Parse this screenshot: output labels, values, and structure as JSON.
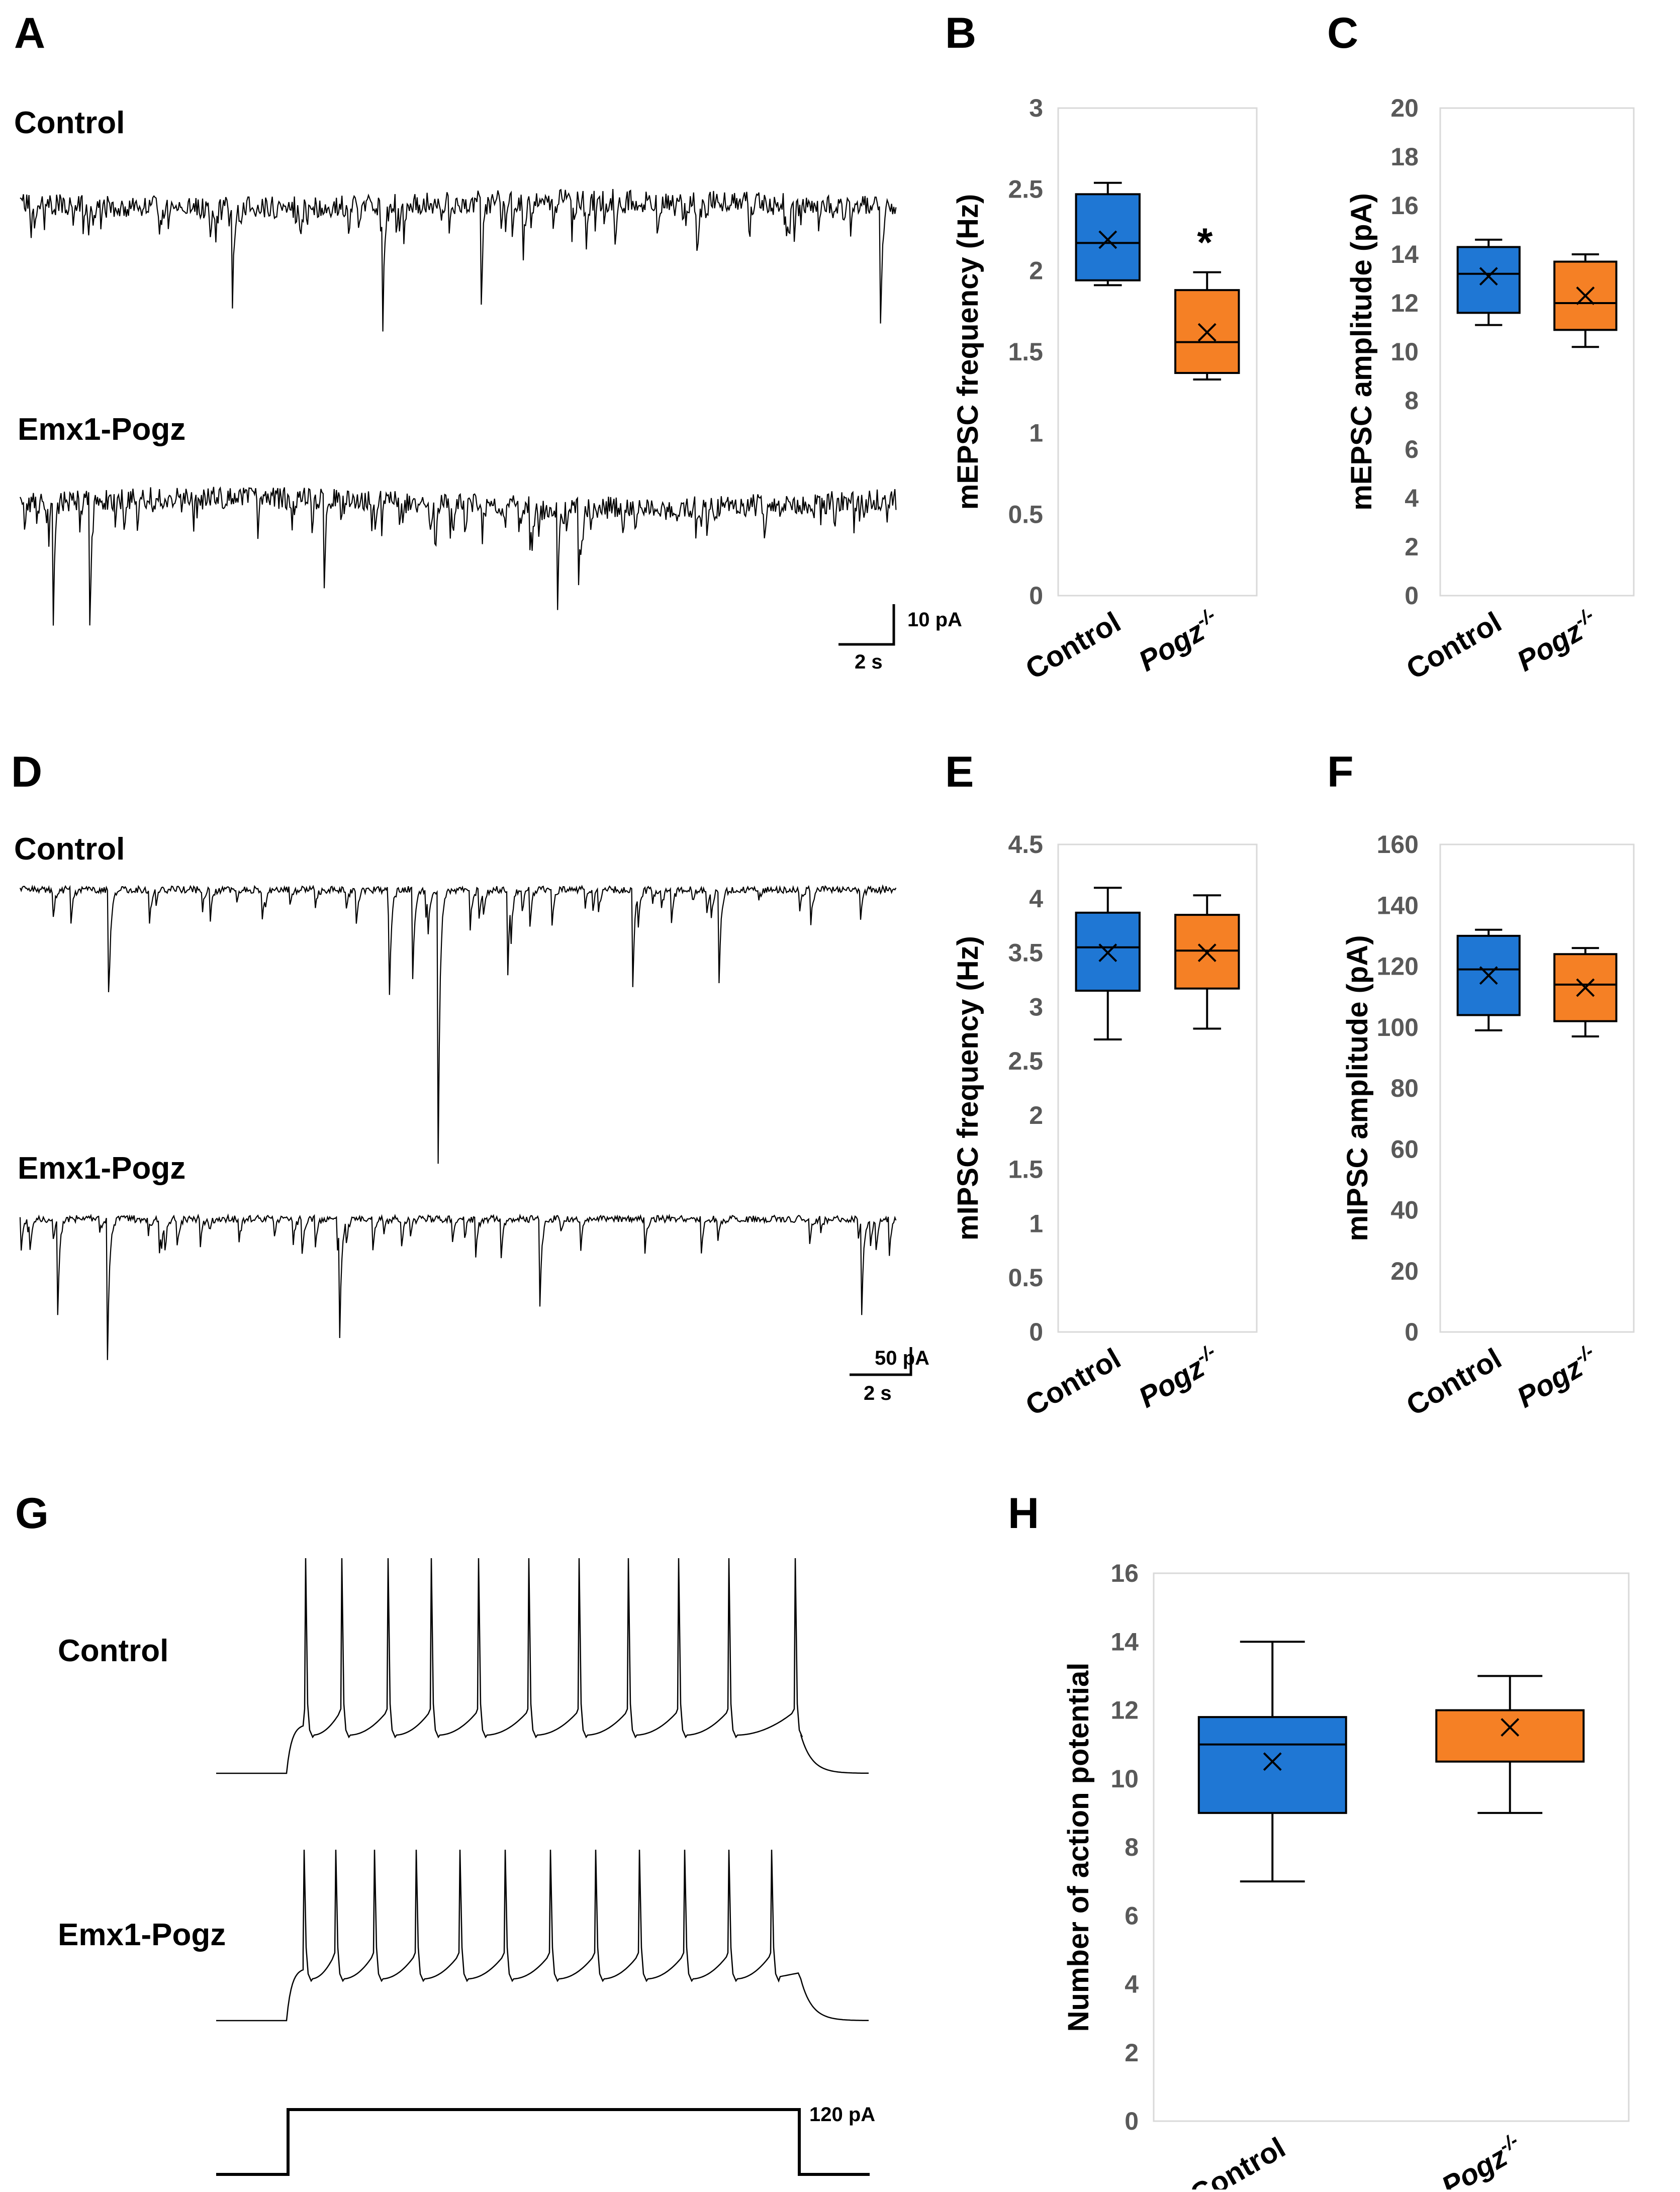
{
  "panels": {
    "A": {
      "letter": "A",
      "traces": [
        "Control",
        "Emx1-Pogz"
      ],
      "scale": {
        "current": "10 pA",
        "time": "2 s"
      }
    },
    "D": {
      "letter": "D",
      "traces": [
        "Control",
        "Emx1-Pogz"
      ],
      "scale": {
        "current": "50 pA",
        "time": "2 s"
      }
    },
    "G": {
      "letter": "G",
      "traces": [
        "Control",
        "Emx1-Pogz"
      ],
      "stimulus": "120 pA"
    }
  },
  "chart_data": [
    {
      "panel": "B",
      "type": "box",
      "ylabel": "mEPSC frequency (Hz)",
      "ylim": [
        0,
        3
      ],
      "ticks": [
        "0",
        "0.5",
        "1",
        "1.5",
        "2",
        "2.5",
        "3"
      ],
      "categories": [
        "Control",
        "Pogz-/-"
      ],
      "category_labels": [
        {
          "base": "Control",
          "sup": ""
        },
        {
          "base": "Pogz",
          "sup": "-/-"
        }
      ],
      "boxes": [
        {
          "name": "Control",
          "min": 1.91,
          "q1": 1.94,
          "median": 2.17,
          "q3": 2.47,
          "max": 2.54,
          "mean": 2.19,
          "color": "#1f77d4"
        },
        {
          "name": "Pogz-/-",
          "min": 1.33,
          "q1": 1.37,
          "median": 1.56,
          "q3": 1.88,
          "max": 1.99,
          "mean": 1.62,
          "color": "#f58025"
        }
      ],
      "annotation": "*"
    },
    {
      "panel": "C",
      "type": "box",
      "ylabel": "mEPSC amplitude (pA)",
      "ylim": [
        0,
        20
      ],
      "ticks": [
        "0",
        "2",
        "4",
        "6",
        "8",
        "10",
        "12",
        "14",
        "16",
        "18",
        "20"
      ],
      "categories": [
        "Control",
        "Pogz-/-"
      ],
      "category_labels": [
        {
          "base": "Control",
          "sup": ""
        },
        {
          "base": "Pogz",
          "sup": "-/-"
        }
      ],
      "boxes": [
        {
          "name": "Control",
          "min": 11.1,
          "q1": 11.6,
          "median": 13.2,
          "q3": 14.3,
          "max": 14.6,
          "mean": 13.1,
          "color": "#1f77d4"
        },
        {
          "name": "Pogz-/-",
          "min": 10.2,
          "q1": 10.9,
          "median": 12.0,
          "q3": 13.7,
          "max": 14.0,
          "mean": 12.3,
          "color": "#f58025"
        }
      ]
    },
    {
      "panel": "E",
      "type": "box",
      "ylabel": "mIPSC frequency (Hz)",
      "ylim": [
        0,
        4.5
      ],
      "ticks": [
        "0",
        "0.5",
        "1",
        "1.5",
        "2",
        "2.5",
        "3",
        "3.5",
        "4",
        "4.5"
      ],
      "categories": [
        "Control",
        "Pogz-/-"
      ],
      "category_labels": [
        {
          "base": "Control",
          "sup": ""
        },
        {
          "base": "Pogz",
          "sup": "-/-"
        }
      ],
      "boxes": [
        {
          "name": "Control",
          "min": 2.7,
          "q1": 3.15,
          "median": 3.55,
          "q3": 3.87,
          "max": 4.1,
          "mean": 3.5,
          "color": "#1f77d4"
        },
        {
          "name": "Pogz-/-",
          "min": 2.8,
          "q1": 3.17,
          "median": 3.52,
          "q3": 3.85,
          "max": 4.03,
          "mean": 3.5,
          "color": "#f58025"
        }
      ]
    },
    {
      "panel": "F",
      "type": "box",
      "ylabel": "mIPSC amplitude (pA)",
      "ylim": [
        0,
        160
      ],
      "ticks": [
        "0",
        "20",
        "40",
        "60",
        "80",
        "100",
        "120",
        "140",
        "160"
      ],
      "categories": [
        "Control",
        "Pogz-/-"
      ],
      "category_labels": [
        {
          "base": "Control",
          "sup": ""
        },
        {
          "base": "Pogz",
          "sup": "-/-"
        }
      ],
      "boxes": [
        {
          "name": "Control",
          "min": 99,
          "q1": 104,
          "median": 119,
          "q3": 130,
          "max": 132,
          "mean": 117,
          "color": "#1f77d4"
        },
        {
          "name": "Pogz-/-",
          "min": 97,
          "q1": 102,
          "median": 114,
          "q3": 124,
          "max": 126,
          "mean": 113,
          "color": "#f58025"
        }
      ]
    },
    {
      "panel": "H",
      "type": "box",
      "ylabel": "Number of action potential",
      "ylim": [
        0,
        16
      ],
      "ticks": [
        "0",
        "2",
        "4",
        "6",
        "8",
        "10",
        "12",
        "14",
        "16"
      ],
      "categories": [
        "Control",
        "Pogz-/-"
      ],
      "category_labels": [
        {
          "base": "Control",
          "sup": ""
        },
        {
          "base": "Pogz",
          "sup": "-/-"
        }
      ],
      "boxes": [
        {
          "name": "Control",
          "min": 7,
          "q1": 9,
          "median": 11,
          "q3": 11.8,
          "max": 14,
          "mean": 10.5,
          "color": "#1f77d4"
        },
        {
          "name": "Pogz-/-",
          "min": 9,
          "q1": 10.5,
          "median": 12,
          "q3": 12,
          "max": 13,
          "mean": 11.5,
          "color": "#f58025"
        }
      ]
    }
  ],
  "colors": {
    "control": "#1f77d4",
    "pogz": "#f58025",
    "axis_text": "#595959",
    "frame": "#d9d9d9"
  }
}
